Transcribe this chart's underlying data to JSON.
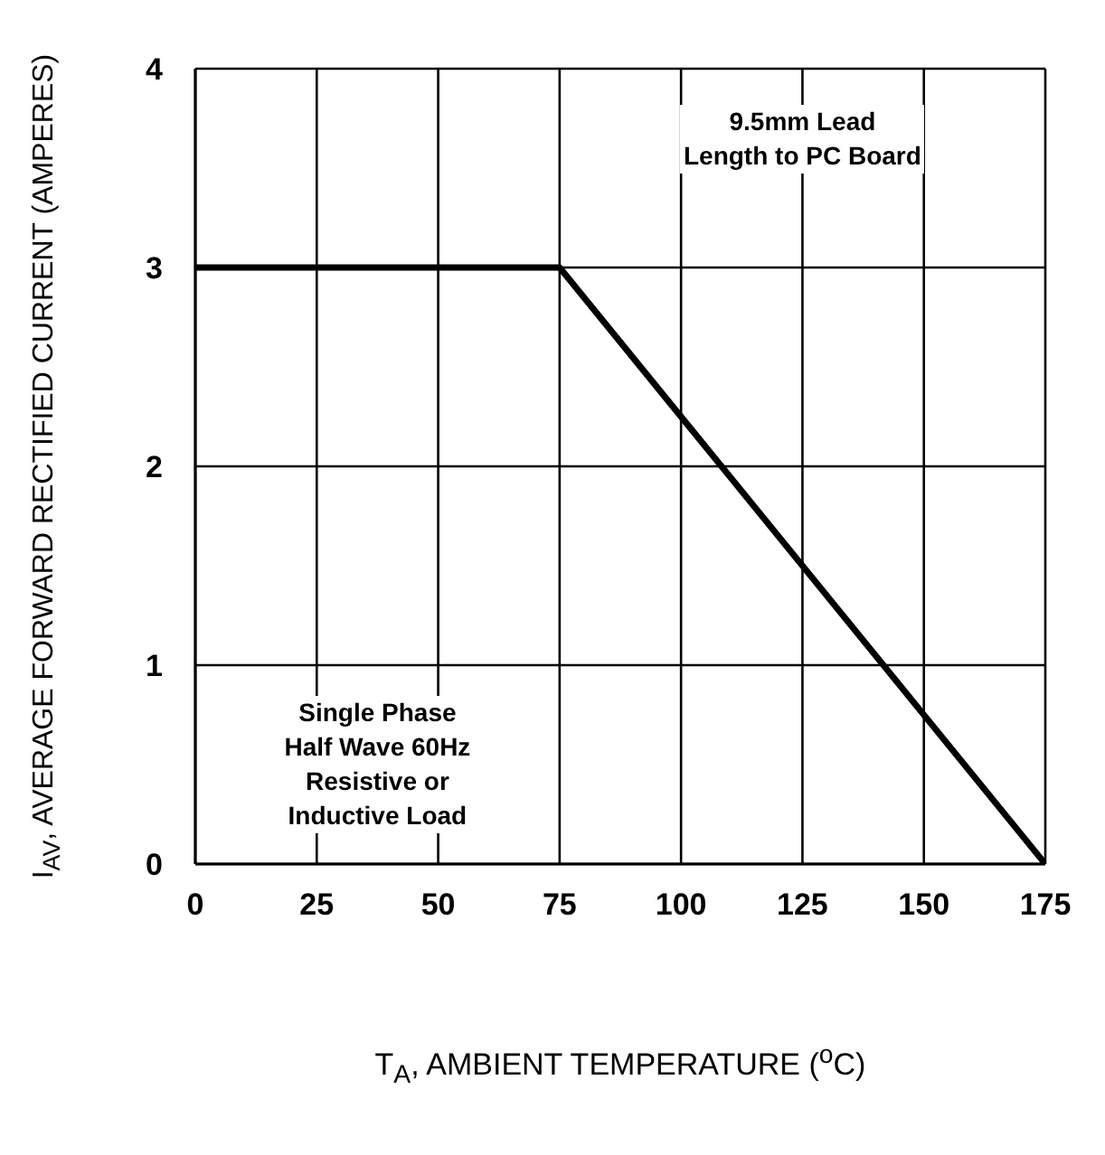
{
  "chart_data": {
    "type": "line",
    "xlabel": "T$_{A}$, AMBIENT TEMPERATURE ($^{o}$C)",
    "ylabel": "I$_{AV}$, AVERAGE FORWARD RECTIFIED CURRENT (AMPERES)",
    "x": [
      0,
      75,
      175
    ],
    "series": [
      {
        "color": "#000000",
        "values": [
          3,
          3,
          0
        ]
      }
    ],
    "xlim": [
      0,
      175
    ],
    "xticks": [
      0,
      25,
      50,
      75,
      100,
      125,
      150,
      175
    ],
    "ylim": [
      0,
      4
    ],
    "yticks": [
      0,
      1,
      2,
      3,
      4
    ],
    "grid": true,
    "legend": false,
    "marker": "none",
    "line_style": "solid",
    "annotations": [
      "9.5mm Lead\nLength to PC Board",
      "Single Phase\nHalf Wave 60Hz\nResistive or\nInductive Load"
    ]
  }
}
